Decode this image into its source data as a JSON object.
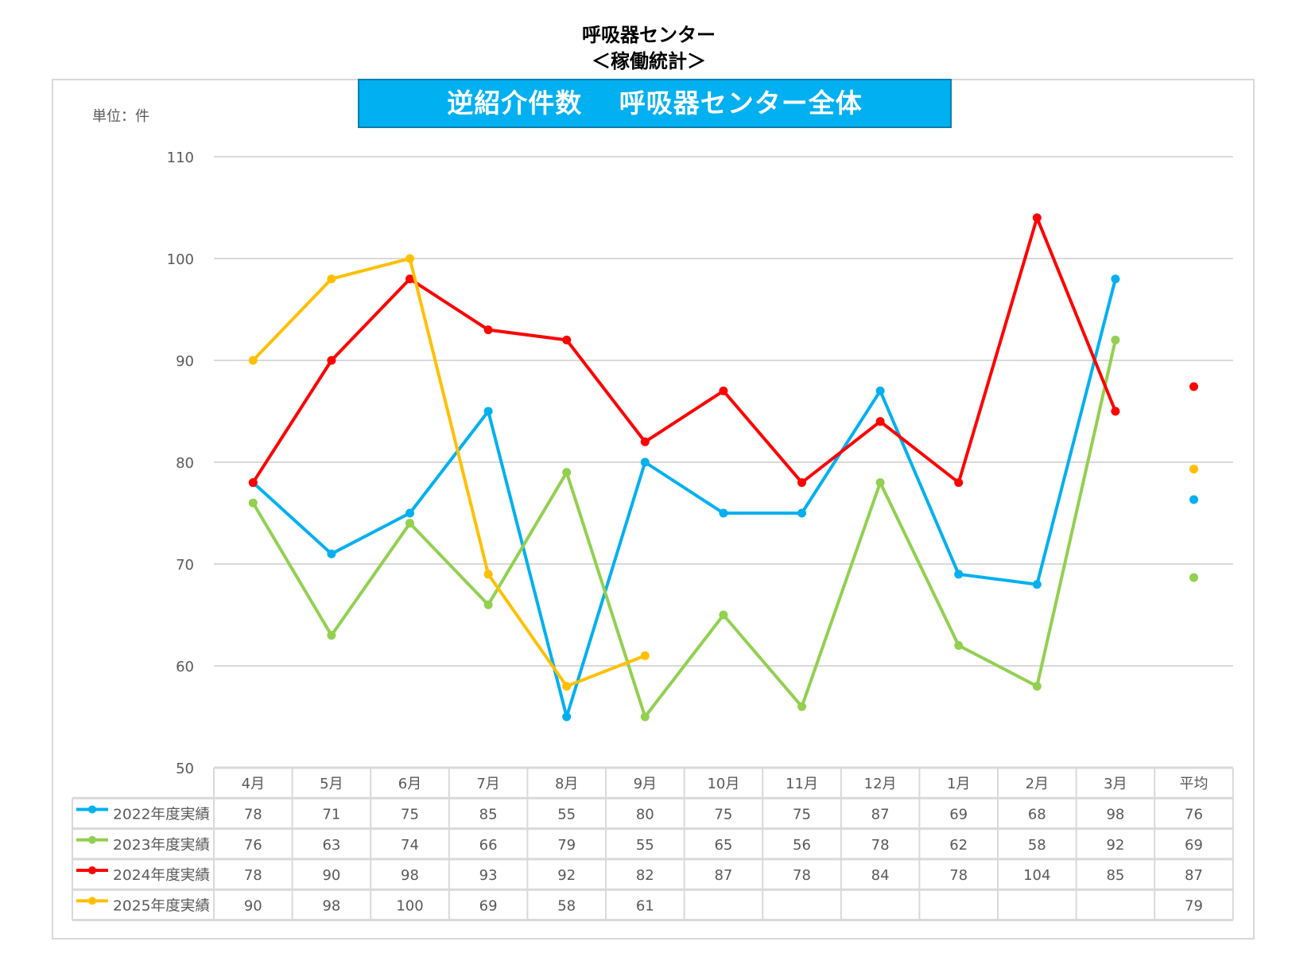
{
  "header": {
    "title_line1": "呼吸器センター",
    "title_line2": "＜稼働統計＞"
  },
  "chart_data": {
    "type": "line",
    "title": "逆紹介件数　 呼吸器センター全体",
    "unit_label": "単位：件",
    "ylim": [
      50,
      110
    ],
    "yticks": [
      50,
      60,
      70,
      80,
      90,
      100,
      110
    ],
    "grid": true,
    "categories": [
      "4月",
      "5月",
      "6月",
      "7月",
      "8月",
      "9月",
      "10月",
      "11月",
      "12月",
      "1月",
      "2月",
      "3月"
    ],
    "avg_label": "平均",
    "legend_placement": "data-table",
    "series": [
      {
        "name": "2022年度実績",
        "color": "#00b0f0",
        "values": [
          78,
          71,
          75,
          85,
          55,
          80,
          75,
          75,
          87,
          69,
          68,
          98
        ],
        "avg": 76.33,
        "avg_label": "76"
      },
      {
        "name": "2023年度実績",
        "color": "#92d050",
        "values": [
          76,
          63,
          74,
          66,
          79,
          55,
          65,
          56,
          78,
          62,
          58,
          92
        ],
        "avg": 68.67,
        "avg_label": "69"
      },
      {
        "name": "2024年度実績",
        "color": "#ff0000",
        "values": [
          78,
          90,
          98,
          93,
          92,
          82,
          87,
          78,
          84,
          78,
          104,
          85
        ],
        "avg": 87.42,
        "avg_label": "87"
      },
      {
        "name": "2025年度実績",
        "color": "#ffc000",
        "values": [
          90,
          98,
          100,
          69,
          58,
          61,
          null,
          null,
          null,
          null,
          null,
          null
        ],
        "avg": 79.33,
        "avg_label": "79"
      }
    ]
  }
}
